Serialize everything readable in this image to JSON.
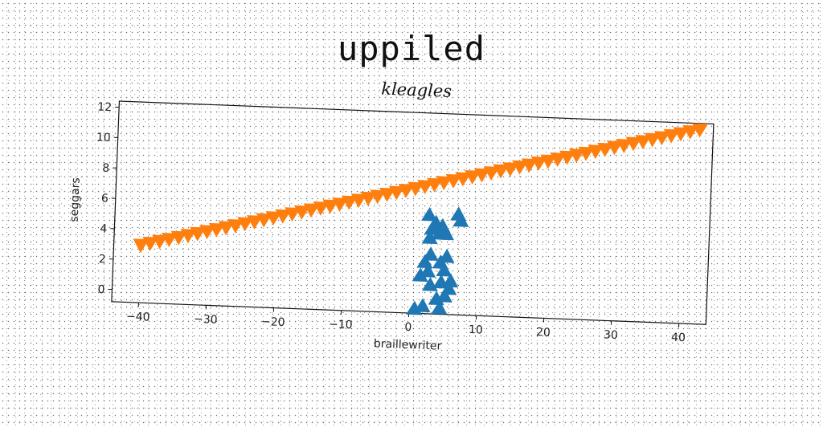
{
  "figure": {
    "title": "uppiled"
  },
  "chart_data": {
    "type": "scatter",
    "title": "kleagles",
    "xlabel": "braillewriter",
    "ylabel": "seggars",
    "xlim": [
      -44,
      44
    ],
    "ylim": [
      -0.8,
      12.4
    ],
    "xticks": [
      -40,
      -30,
      -20,
      -10,
      0,
      10,
      20,
      30,
      40
    ],
    "yticks": [
      0,
      2,
      4,
      6,
      8,
      10,
      12
    ],
    "grid": false,
    "series": [
      {
        "marker": "triangle-up",
        "color": "#1f77b4",
        "points": [
          [
            0.8,
            -0.5
          ],
          [
            2.0,
            -0.3
          ],
          [
            4.5,
            -0.4
          ],
          [
            4.0,
            0.2
          ],
          [
            5.2,
            0.4
          ],
          [
            5.8,
            0.9
          ],
          [
            3.0,
            1.1
          ],
          [
            4.6,
            1.3
          ],
          [
            6.0,
            1.4
          ],
          [
            1.5,
            1.7
          ],
          [
            2.6,
            2.0
          ],
          [
            5.0,
            2.1
          ],
          [
            2.1,
            2.6
          ],
          [
            4.4,
            2.6
          ],
          [
            2.9,
            3.1
          ],
          [
            5.3,
            3.0
          ],
          [
            2.5,
            5.7
          ],
          [
            3.5,
            5.2
          ],
          [
            4.5,
            5.0
          ],
          [
            6.8,
            5.8
          ],
          [
            3.0,
            4.8
          ],
          [
            5.1,
            4.5
          ],
          [
            7.2,
            5.4
          ],
          [
            2.7,
            4.2
          ],
          [
            4.1,
            4.5
          ]
        ]
      },
      {
        "marker": "triangle-down",
        "color": "#ff7f0e",
        "x_start": -40,
        "x_end": 42,
        "y_start": 3.0,
        "y_end": 12.0,
        "count": 60
      }
    ]
  }
}
